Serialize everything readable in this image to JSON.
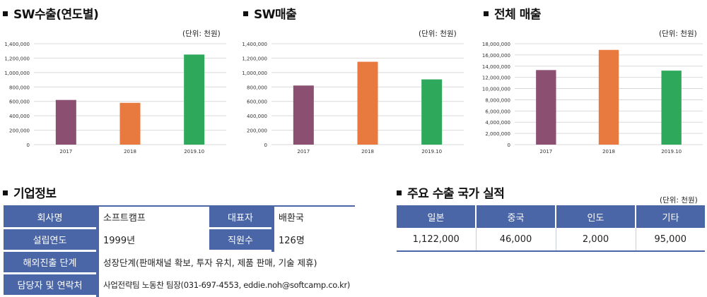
{
  "charts": {
    "sw_export": {
      "title": "SW수출(연도별)",
      "unit": "(단위: 천원)"
    },
    "sw_sales": {
      "title": "SW매출",
      "unit": "(단위: 천원)"
    },
    "total_sales": {
      "title": "전체 매출",
      "unit": "(단위: 천원)"
    }
  },
  "chart_data": [
    {
      "type": "bar",
      "title": "SW수출(연도별)",
      "categories": [
        "2017",
        "2018",
        "2019.10"
      ],
      "values": [
        620000,
        580000,
        1250000
      ],
      "colors": [
        "#8b4f72",
        "#e8793f",
        "#2ea85a"
      ],
      "ylim": [
        0,
        1400000
      ],
      "yticks": [
        "0",
        "200,000",
        "400,000",
        "600,000",
        "800,000",
        "1,000,000",
        "1,200,000",
        "1,400,000"
      ],
      "grid": true
    },
    {
      "type": "bar",
      "title": "SW매출",
      "categories": [
        "2017",
        "2018",
        "2019.10"
      ],
      "values": [
        820000,
        1150000,
        905000
      ],
      "colors": [
        "#8b4f72",
        "#e8793f",
        "#2ea85a"
      ],
      "ylim": [
        0,
        1400000
      ],
      "yticks": [
        "0",
        "200,000",
        "400,000",
        "600,000",
        "800,000",
        "1,000,000",
        "1,200,000",
        "1,400,000"
      ],
      "grid": true
    },
    {
      "type": "bar",
      "title": "전체 매출",
      "categories": [
        "2017",
        "2018",
        "2019.10"
      ],
      "values": [
        13300000,
        16900000,
        13200000
      ],
      "colors": [
        "#8b4f72",
        "#e8793f",
        "#2ea85a"
      ],
      "ylim": [
        0,
        18000000
      ],
      "yticks": [
        "0",
        "2,000,000",
        "4,000,000",
        "6,000,000",
        "8,000,000",
        "10,000,000",
        "12,000,000",
        "14,000,000",
        "16,000,000",
        "18,000,000"
      ],
      "grid": true
    }
  ],
  "company": {
    "title": "기업정보",
    "rows": [
      {
        "k1": "회사명",
        "v1": "소프트캠프",
        "k2": "대표자",
        "v2": "배환국"
      },
      {
        "k1": "설립연도",
        "v1": "1999년",
        "k2": "직원수",
        "v2": "126명"
      },
      {
        "k1": "해외진출 단계",
        "v1": "성장단계(판매채널 확보, 투자 유치, 제품 판매, 기술 제휴)"
      },
      {
        "k1": "담당자 및 연락처",
        "v1": "사업전략팀 노동찬 팀장(031-697-4553, eddie.noh@softcamp.co.kr)"
      }
    ]
  },
  "exports": {
    "title": "주요 수출 국가 실적",
    "unit": "(단위: 천원)",
    "headers": [
      "일본",
      "중국",
      "인도",
      "기타"
    ],
    "values": [
      "1,122,000",
      "46,000",
      "2,000",
      "95,000"
    ]
  }
}
